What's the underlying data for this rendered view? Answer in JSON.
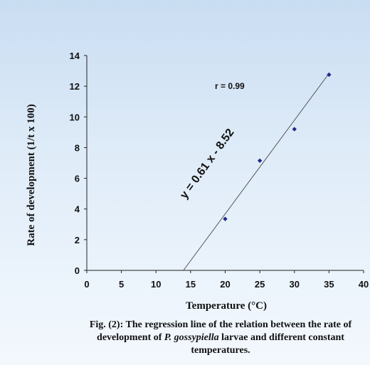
{
  "chart_data": {
    "type": "scatter",
    "xlabel": "Temperature (°C)",
    "ylabel": "Rate of development (1/t x 100)",
    "xlim": [
      0,
      40
    ],
    "ylim": [
      0,
      14
    ],
    "x_ticks": [
      "0",
      "5",
      "10",
      "15",
      "20",
      "25",
      "30",
      "35",
      "40"
    ],
    "y_ticks": [
      "0",
      "2",
      "4",
      "6",
      "8",
      "10",
      "12",
      "14"
    ],
    "grid": false,
    "points": [
      {
        "x": 20,
        "y": 3.35
      },
      {
        "x": 25,
        "y": 7.15
      },
      {
        "x": 30,
        "y": 9.2
      },
      {
        "x": 35,
        "y": 12.75
      }
    ],
    "regression": {
      "slope": 0.61,
      "intercept": -8.52
    },
    "equation_label": "y = 0.61 x - 8.52",
    "r_label": "r = 0.99",
    "marker_color": "#1f2a8c"
  },
  "caption": {
    "part1": "Fig. (2): The regression  line of the relation between the rate of development  of ",
    "species": "P. gossypiella",
    "part2": "  larvae and different constant temperatures."
  }
}
